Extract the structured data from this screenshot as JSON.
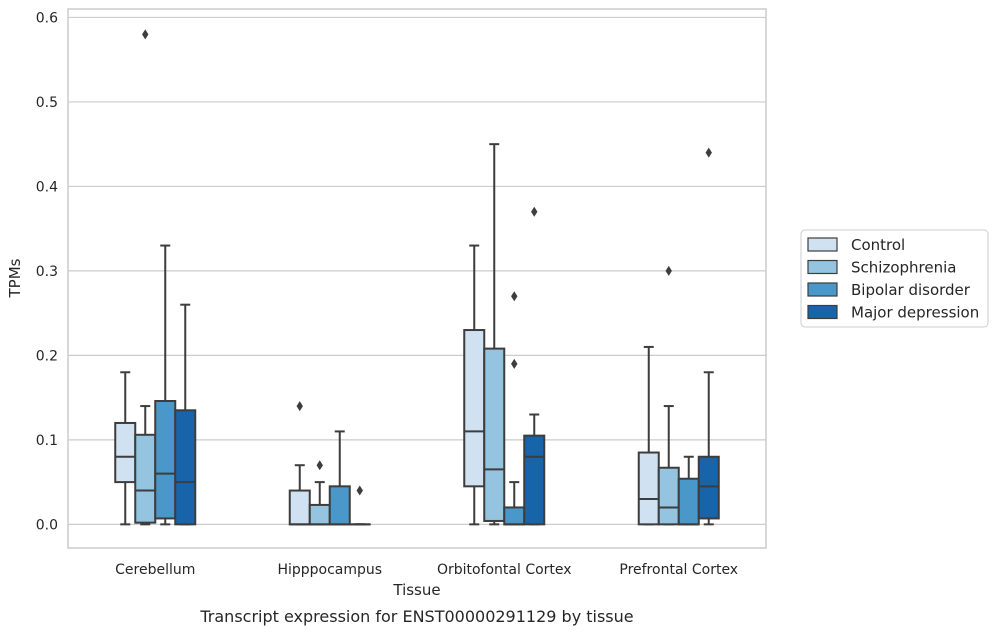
{
  "caption": "Transcript expression for ENST00000291129 by tissue",
  "chart_data": {
    "type": "box",
    "title": "",
    "xlabel": "Tissue",
    "ylabel": "TPMs",
    "ylim": [
      -0.028,
      0.61
    ],
    "yticks": [
      "0.0",
      "0.1",
      "0.2",
      "0.3",
      "0.4",
      "0.5",
      "0.6"
    ],
    "ytick_values": [
      0,
      0.1,
      0.2,
      0.3,
      0.4,
      0.5,
      0.6
    ],
    "grid": "horizontal",
    "legend_position": "right",
    "categories": [
      "Cerebellum",
      "Hipppocampus",
      "Orbitofontal Cortex",
      "Prefrontal Cortex"
    ],
    "series": [
      {
        "name": "Control",
        "color": "#d0e1f2",
        "boxes": [
          {
            "min": 0,
            "q1": 0.05,
            "median": 0.08,
            "q3": 0.12,
            "max": 0.18,
            "outliers": []
          },
          {
            "min": 0,
            "q1": 0,
            "median": 0,
            "q3": 0.04,
            "max": 0.07,
            "outliers": [
              0.14
            ]
          },
          {
            "min": 0,
            "q1": 0.045,
            "median": 0.11,
            "q3": 0.23,
            "max": 0.33,
            "outliers": []
          },
          {
            "min": 0,
            "q1": 0,
            "median": 0.03,
            "q3": 0.085,
            "max": 0.21,
            "outliers": []
          }
        ]
      },
      {
        "name": "Schizophrenia",
        "color": "#94c4df",
        "boxes": [
          {
            "min": 0,
            "q1": 0.002,
            "median": 0.04,
            "q3": 0.106,
            "max": 0.14,
            "outliers": [
              0.58
            ]
          },
          {
            "min": 0,
            "q1": 0,
            "median": 0,
            "q3": 0.023,
            "max": 0.05,
            "outliers": [
              0.07
            ]
          },
          {
            "min": 0,
            "q1": 0.004,
            "median": 0.065,
            "q3": 0.208,
            "max": 0.45,
            "outliers": []
          },
          {
            "min": 0,
            "q1": 0,
            "median": 0.02,
            "q3": 0.067,
            "max": 0.14,
            "outliers": [
              0.3
            ]
          }
        ]
      },
      {
        "name": "Bipolar disorder",
        "color": "#4a98c9",
        "boxes": [
          {
            "min": 0,
            "q1": 0.007,
            "median": 0.06,
            "q3": 0.146,
            "max": 0.33,
            "outliers": []
          },
          {
            "min": 0,
            "q1": 0,
            "median": 0,
            "q3": 0.045,
            "max": 0.11,
            "outliers": []
          },
          {
            "min": 0,
            "q1": 0,
            "median": 0,
            "q3": 0.02,
            "max": 0.05,
            "outliers": [
              0.19,
              0.27
            ]
          },
          {
            "min": 0,
            "q1": 0,
            "median": 0,
            "q3": 0.054,
            "max": 0.08,
            "outliers": []
          }
        ]
      },
      {
        "name": "Major depression",
        "color": "#1764ab",
        "boxes": [
          {
            "min": 0,
            "q1": 0,
            "median": 0.05,
            "q3": 0.135,
            "max": 0.26,
            "outliers": []
          },
          {
            "min": 0,
            "q1": 0,
            "median": 0,
            "q3": 0,
            "max": 0,
            "outliers": [
              0.04
            ]
          },
          {
            "min": 0,
            "q1": 0,
            "median": 0.08,
            "q3": 0.105,
            "max": 0.13,
            "outliers": [
              0.37
            ]
          },
          {
            "min": 0,
            "q1": 0.007,
            "median": 0.045,
            "q3": 0.08,
            "max": 0.18,
            "outliers": [
              0.44
            ]
          }
        ]
      }
    ]
  }
}
